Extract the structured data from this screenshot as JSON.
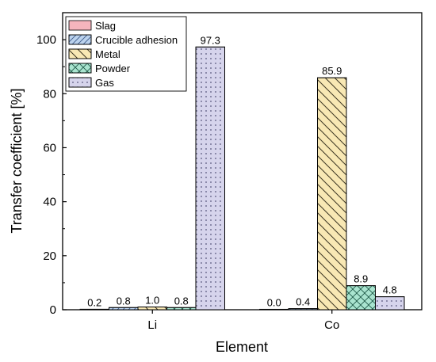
{
  "chart_data": {
    "type": "bar",
    "title": "",
    "xlabel": "Element",
    "ylabel": "Transfer coefficient [%]",
    "categories": [
      "Li",
      "Co"
    ],
    "ylim": [
      0,
      110
    ],
    "yticks": [
      0,
      20,
      40,
      60,
      80,
      100
    ],
    "grid": false,
    "legend_position": "top-left",
    "series": [
      {
        "name": "Slag",
        "values": [
          0.2,
          0.0
        ],
        "labels": [
          "0.2",
          "0.0"
        ],
        "fill": "#f5b5bd",
        "pattern": "none"
      },
      {
        "name": "Crucible adhesion",
        "values": [
          0.8,
          0.4
        ],
        "labels": [
          "0.8",
          "0.4"
        ],
        "fill": "#bcd3ee",
        "pattern": "diag-right"
      },
      {
        "name": "Metal",
        "values": [
          1.0,
          85.9
        ],
        "labels": [
          "1.0",
          "85.9"
        ],
        "fill": "#f8e8b4",
        "pattern": "diag-left"
      },
      {
        "name": "Powder",
        "values": [
          0.8,
          8.9
        ],
        "labels": [
          "0.8",
          "8.9"
        ],
        "fill": "#a9e4cf",
        "pattern": "cross"
      },
      {
        "name": "Gas",
        "values": [
          97.3,
          4.8
        ],
        "labels": [
          "97.3",
          "4.8"
        ],
        "fill": "#d6d4ec",
        "pattern": "dots"
      }
    ]
  }
}
